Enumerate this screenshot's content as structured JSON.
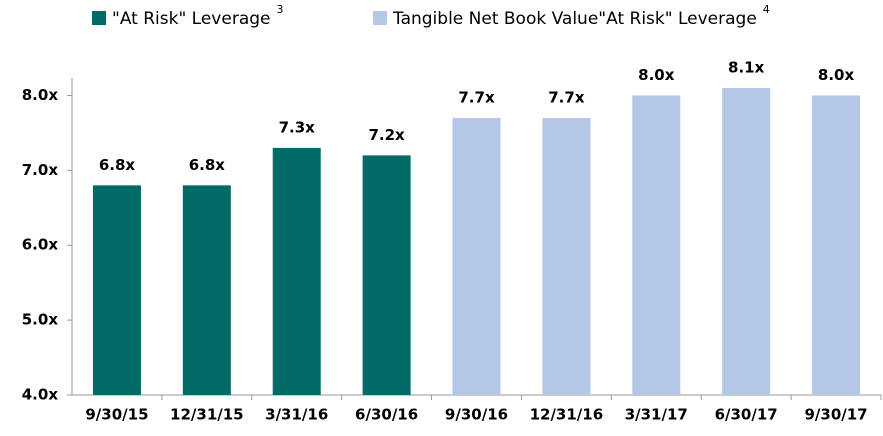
{
  "chart_data": {
    "type": "bar",
    "categories": [
      "9/30/15",
      "12/31/15",
      "3/31/16",
      "6/30/16",
      "9/30/16",
      "12/31/16",
      "3/31/17",
      "6/30/17",
      "9/30/17"
    ],
    "series": [
      {
        "name": "\"At Risk\" Leverage",
        "footnote": "3",
        "color": "#006b66",
        "values": [
          6.8,
          6.8,
          7.3,
          7.2,
          null,
          null,
          null,
          null,
          null
        ],
        "value_labels": [
          "6.8x",
          "6.8x",
          "7.3x",
          "7.2x",
          null,
          null,
          null,
          null,
          null
        ]
      },
      {
        "name": "Tangible Net Book Value\"At Risk\" Leverage",
        "footnote": "4",
        "color": "#b4c7e7",
        "values": [
          null,
          null,
          null,
          null,
          7.7,
          7.7,
          8.0,
          8.1,
          8.0
        ],
        "value_labels": [
          null,
          null,
          null,
          null,
          "7.7x",
          "7.7x",
          "8.0x",
          "8.1x",
          "8.0x"
        ]
      }
    ],
    "ylim": [
      4,
      8.1
    ],
    "yticks": [
      {
        "value": 4,
        "label": "4.0x"
      },
      {
        "value": 5,
        "label": "5.0x"
      },
      {
        "value": 6,
        "label": "6.0x"
      },
      {
        "value": 7,
        "label": "7.0x"
      },
      {
        "value": 8,
        "label": "8.0x"
      }
    ],
    "legend": "top",
    "grid": false
  }
}
